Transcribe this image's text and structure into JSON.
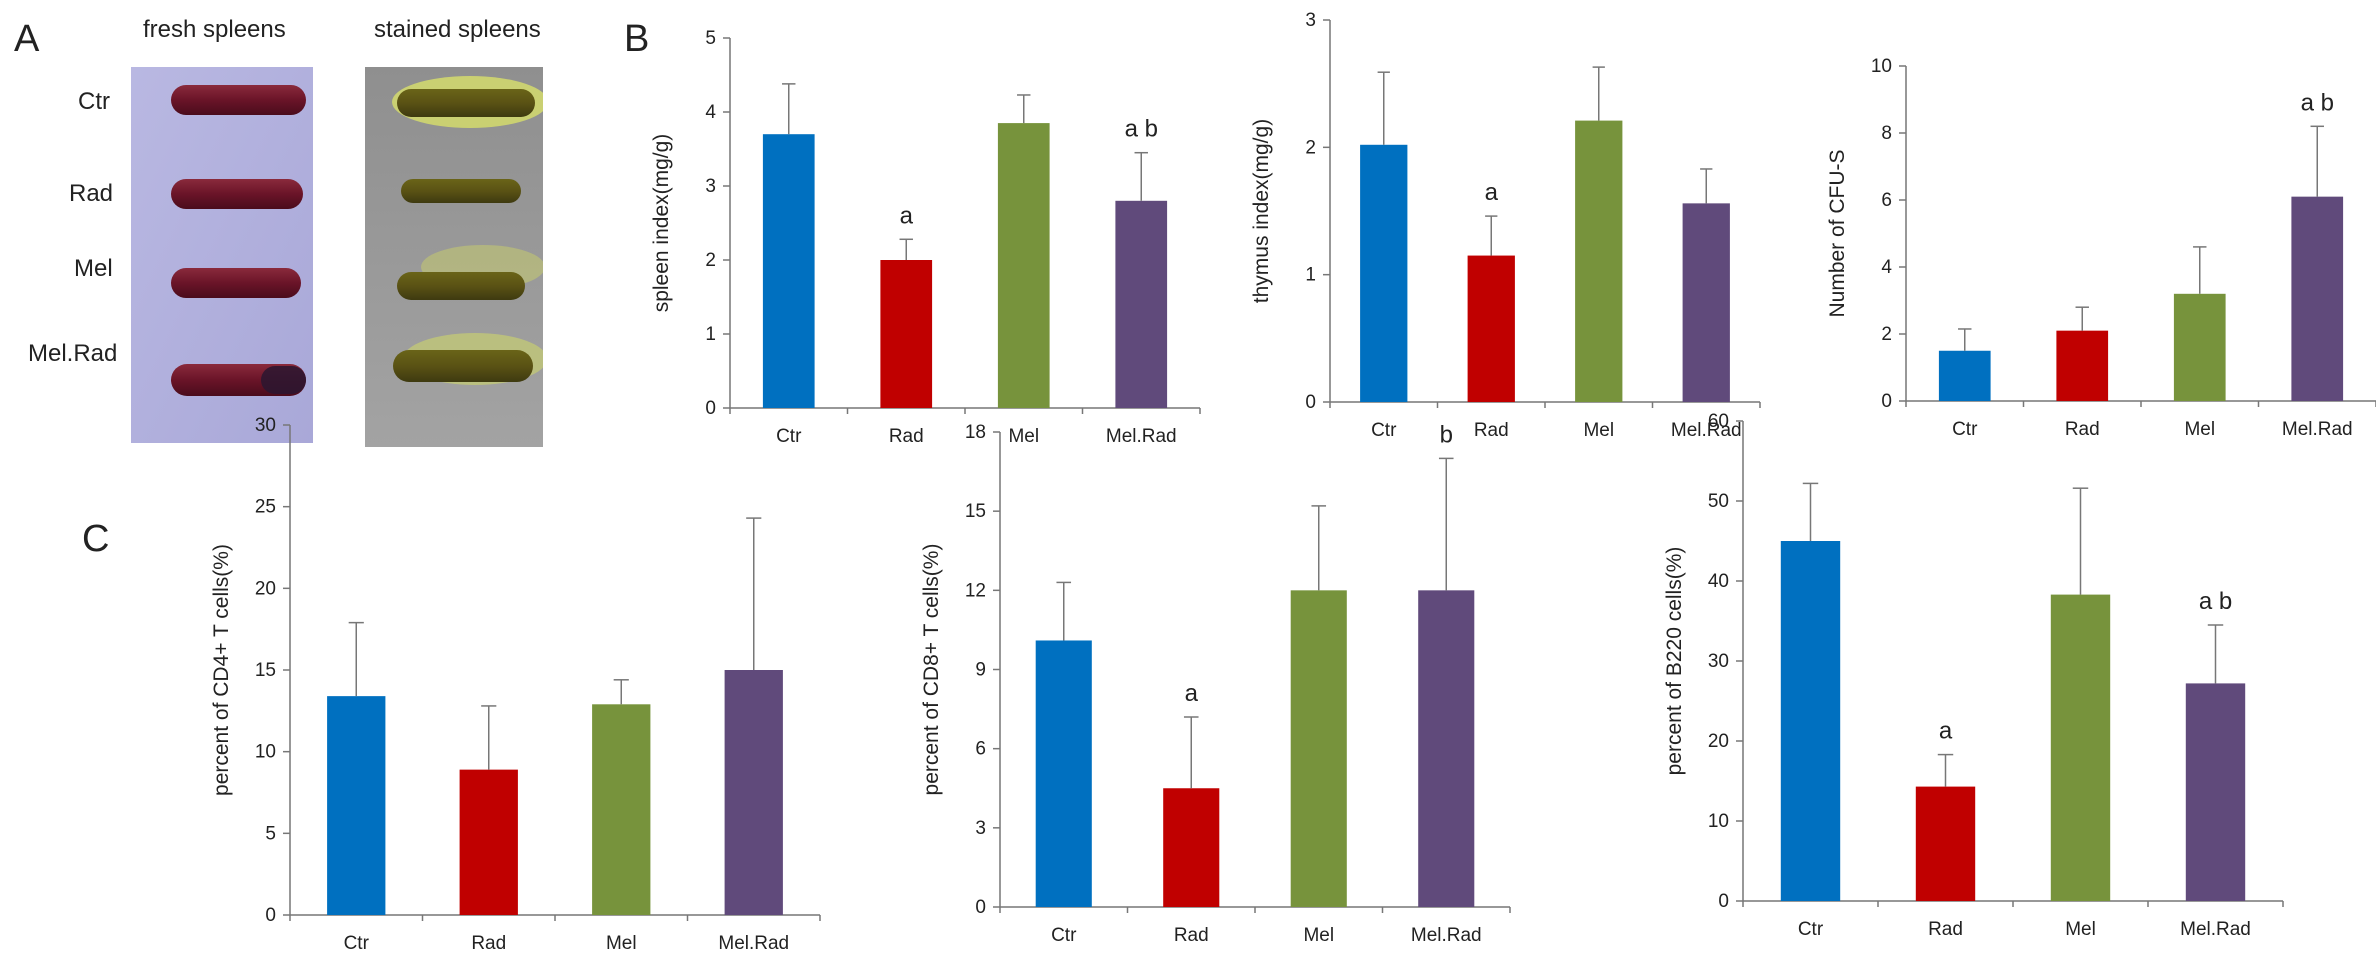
{
  "panels": {
    "A": "A",
    "B": "B",
    "C": "C"
  },
  "photos": {
    "fresh_title": "fresh spleens",
    "stained_title": "stained spleens",
    "row_labels": [
      "Ctr",
      "Rad",
      "Mel",
      "Mel.Rad"
    ]
  },
  "colors": {
    "Ctr": "#0070C0",
    "Rad": "#C00000",
    "Mel": "#77933C",
    "Mel.Rad": "#604A7B"
  },
  "chart_data": [
    {
      "id": "spleen",
      "type": "bar",
      "categories": [
        "Ctr",
        "Rad",
        "Mel",
        "Mel.Rad"
      ],
      "values": [
        3.7,
        2.0,
        3.85,
        2.8
      ],
      "errors": [
        0.68,
        0.28,
        0.38,
        0.65
      ],
      "annotations": [
        "",
        "a",
        "",
        "a b"
      ],
      "ylabel": "spleen index(mg/g)",
      "xlabel": "",
      "ylim": [
        0,
        5
      ],
      "yticks": [
        "0",
        "1",
        "2",
        "3",
        "4",
        "5"
      ]
    },
    {
      "id": "thymus",
      "type": "bar",
      "categories": [
        "Ctr",
        "Rad",
        "Mel",
        "Mel.Rad"
      ],
      "values": [
        2.02,
        1.15,
        2.21,
        1.56
      ],
      "errors": [
        0.57,
        0.31,
        0.42,
        0.27
      ],
      "annotations": [
        "",
        "a",
        "",
        ""
      ],
      "ylabel": "thymus index(mg/g)",
      "xlabel": "",
      "ylim": [
        0,
        3
      ],
      "yticks": [
        "0",
        "1",
        "2",
        "3"
      ]
    },
    {
      "id": "cfus",
      "type": "bar",
      "categories": [
        "Ctr",
        "Rad",
        "Mel",
        "Mel.Rad"
      ],
      "values": [
        1.5,
        2.1,
        3.2,
        6.1
      ],
      "errors": [
        0.65,
        0.7,
        1.4,
        2.1
      ],
      "annotations": [
        "",
        "",
        "",
        "a b"
      ],
      "ylabel": "Number of CFU-S",
      "xlabel": "",
      "ylim": [
        0,
        10
      ],
      "yticks": [
        "0",
        "2",
        "4",
        "6",
        "8",
        "10"
      ]
    },
    {
      "id": "cd4",
      "type": "bar",
      "categories": [
        "Ctr",
        "Rad",
        "Mel",
        "Mel.Rad"
      ],
      "values": [
        13.4,
        8.9,
        12.9,
        15.0
      ],
      "errors": [
        4.5,
        3.9,
        1.5,
        9.3
      ],
      "annotations": [
        "",
        "",
        "",
        ""
      ],
      "ylabel": "percent of CD4+ T cells(%)",
      "xlabel": "",
      "ylim": [
        0,
        30
      ],
      "yticks": [
        "0",
        "5",
        "10",
        "15",
        "20",
        "25",
        "30"
      ]
    },
    {
      "id": "cd8",
      "type": "bar",
      "categories": [
        "Ctr",
        "Rad",
        "Mel",
        "Mel.Rad"
      ],
      "values": [
        10.1,
        4.5,
        12.0,
        12.0
      ],
      "errors": [
        2.2,
        2.7,
        3.2,
        5.0
      ],
      "annotations": [
        "",
        "a",
        "",
        "b"
      ],
      "ylabel": "percent of CD8+ T cells(%)",
      "xlabel": "",
      "ylim": [
        0,
        18
      ],
      "yticks": [
        "0",
        "3",
        "6",
        "9",
        "12",
        "15",
        "18"
      ]
    },
    {
      "id": "b220",
      "type": "bar",
      "categories": [
        "Ctr",
        "Rad",
        "Mel",
        "Mel.Rad"
      ],
      "values": [
        45.0,
        14.3,
        38.3,
        27.2
      ],
      "errors": [
        7.2,
        4.0,
        13.3,
        7.3
      ],
      "annotations": [
        "",
        "a",
        "",
        "a b"
      ],
      "ylabel": "percent of B220 cells(%)",
      "xlabel": "",
      "ylim": [
        0,
        60
      ],
      "yticks": [
        "0",
        "10",
        "20",
        "30",
        "40",
        "50",
        "60"
      ]
    }
  ]
}
